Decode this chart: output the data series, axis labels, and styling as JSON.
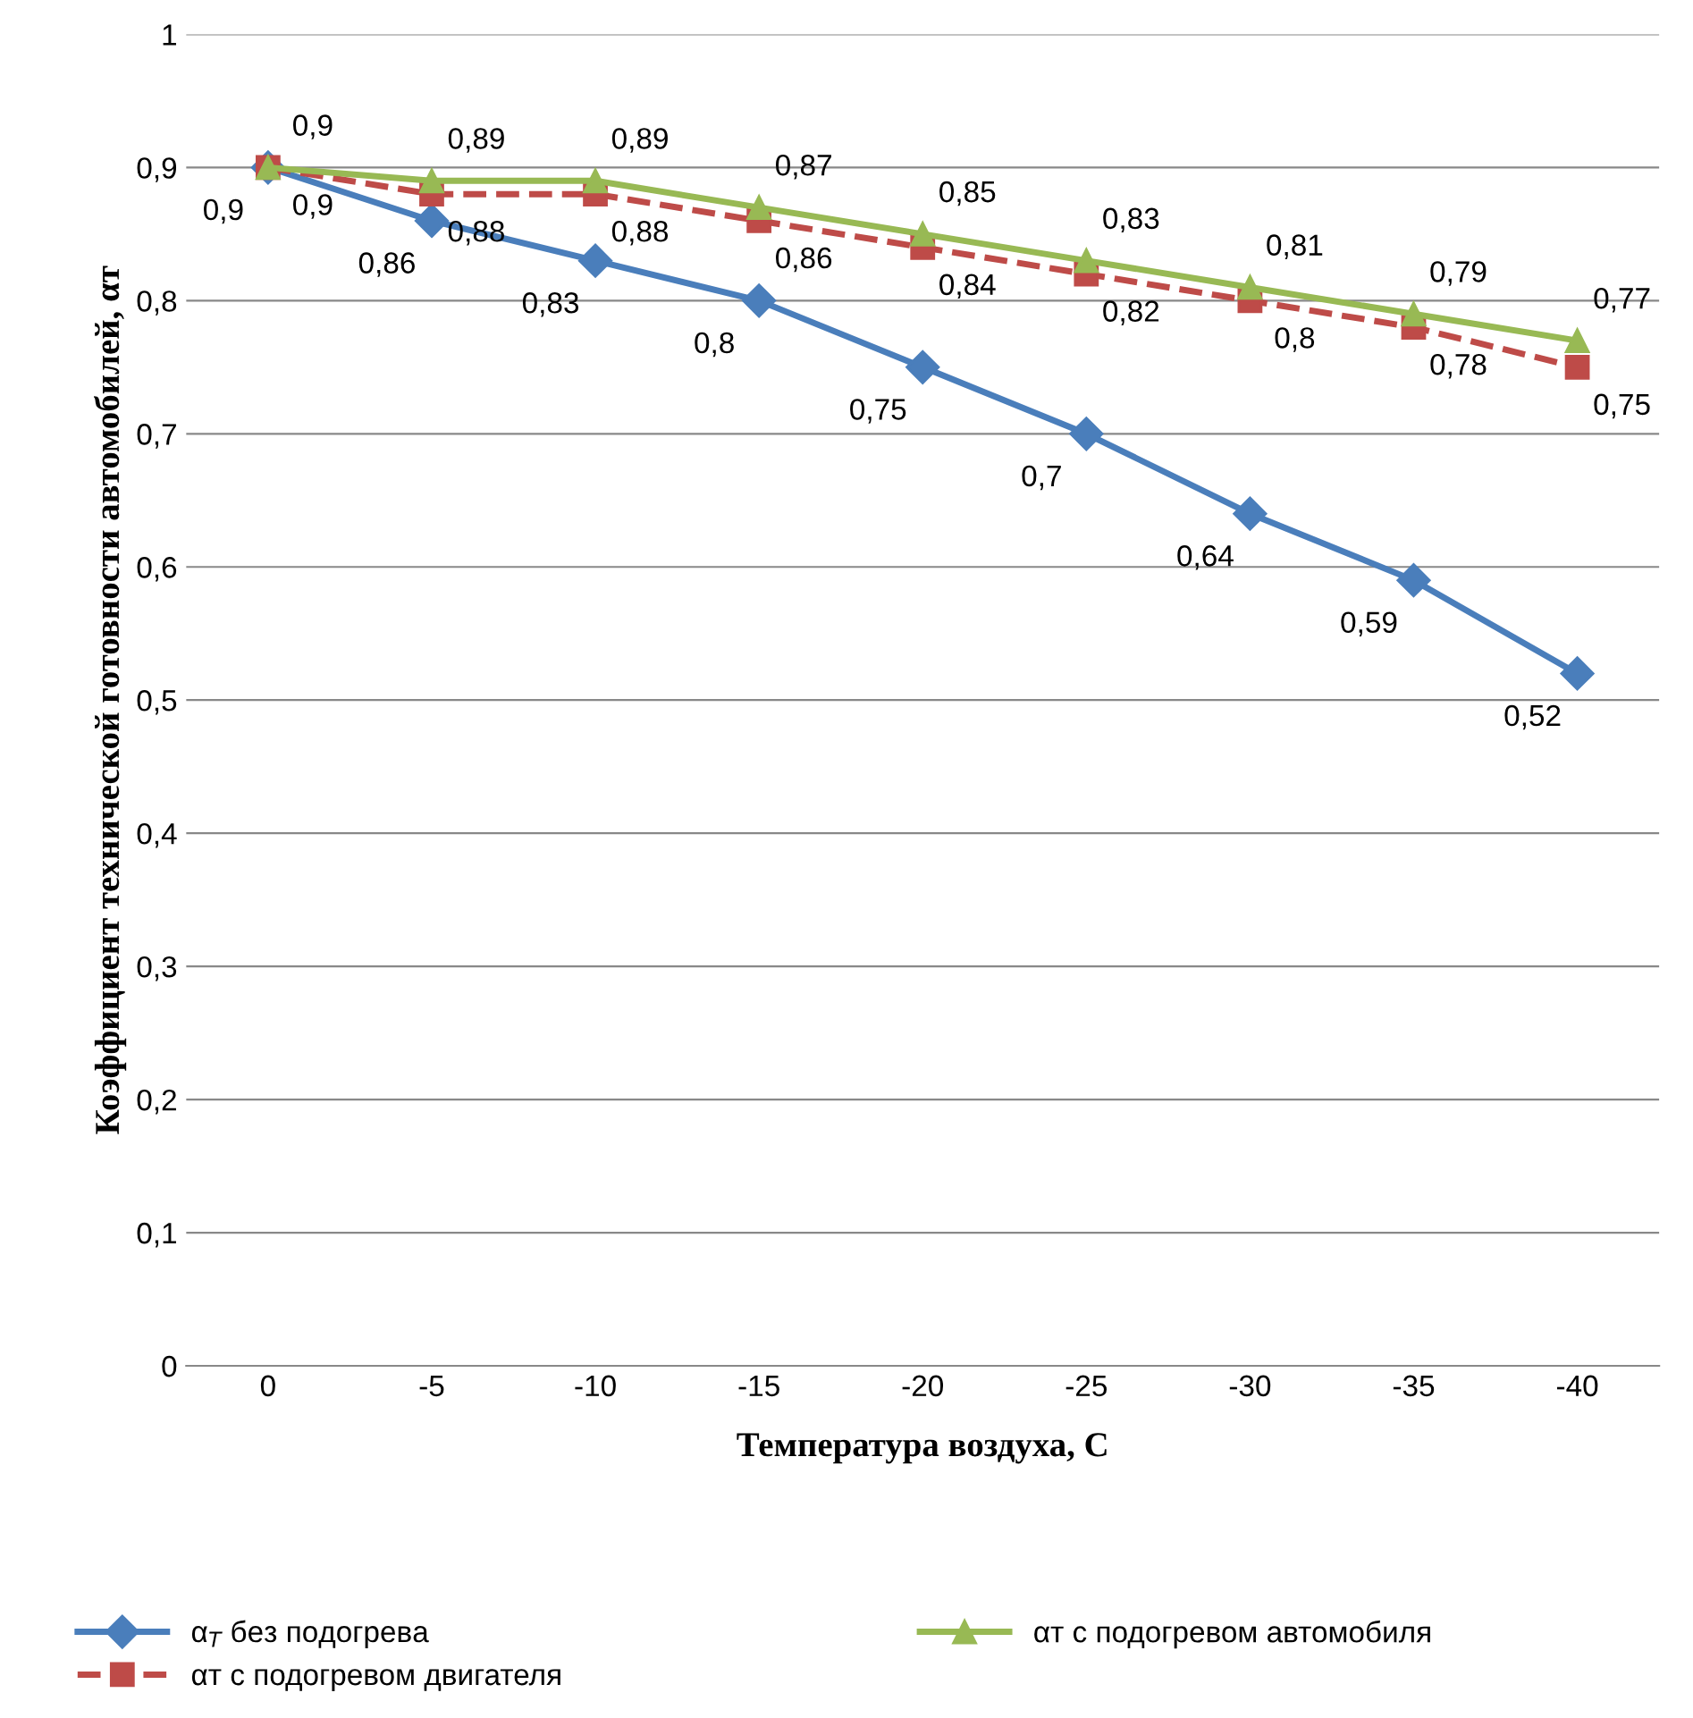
{
  "chart_data": {
    "type": "line",
    "xlabel": "Температура воздуха, С",
    "ylabel": "Коэффициент технической готовности автомобилей, αт",
    "categories": [
      "0",
      "-5",
      "-10",
      "-15",
      "-20",
      "-25",
      "-30",
      "-35",
      "-40"
    ],
    "series": [
      {
        "name": "α$_{T}$ без подогрева",
        "color": "#4a7ebb",
        "marker": "diamond",
        "line_style": "solid",
        "values": [
          0.9,
          0.86,
          0.83,
          0.8,
          0.75,
          0.7,
          0.64,
          0.59,
          0.52
        ],
        "value_labels": [
          "0,9",
          "0,86",
          "0,83",
          "0,8",
          "0,75",
          "0,7",
          "0,64",
          "0,59",
          "0,52"
        ]
      },
      {
        "name": "αт с подогревом двигателя",
        "color": "#be4b48",
        "marker": "square",
        "line_style": "dashed",
        "values": [
          0.9,
          0.88,
          0.88,
          0.86,
          0.84,
          0.82,
          0.8,
          0.78,
          0.75
        ],
        "value_labels": [
          "0,9",
          "0,88",
          "0,88",
          "0,86",
          "0,84",
          "0,82",
          "0,8",
          "0,78",
          "0,75"
        ]
      },
      {
        "name": "αт с подогревом автомобиля",
        "color": "#98b954",
        "marker": "triangle",
        "line_style": "solid",
        "values": [
          0.9,
          0.89,
          0.89,
          0.87,
          0.85,
          0.83,
          0.81,
          0.79,
          0.77
        ],
        "value_labels": [
          "0,9",
          "0,89",
          "0,89",
          "0,87",
          "0,85",
          "0,83",
          "0,81",
          "0,79",
          "0,77"
        ]
      }
    ],
    "ylim": [
      0,
      1
    ],
    "yticks": [
      0,
      {
        "value": 0.1,
        "label": "0,1"
      },
      {
        "value": 0.2,
        "label": "0,2"
      },
      {
        "value": 0.3,
        "label": "0,3"
      },
      {
        "value": 0.4,
        "label": "0,4"
      },
      {
        "value": 0.5,
        "label": "0,5"
      },
      {
        "value": 0.6,
        "label": "0,6"
      },
      {
        "value": 0.7,
        "label": "0,7"
      },
      {
        "value": 0.8,
        "label": "0,8"
      },
      {
        "value": 0.9,
        "label": "0,9"
      },
      1
    ],
    "grid": "y",
    "legend": "bottom"
  }
}
